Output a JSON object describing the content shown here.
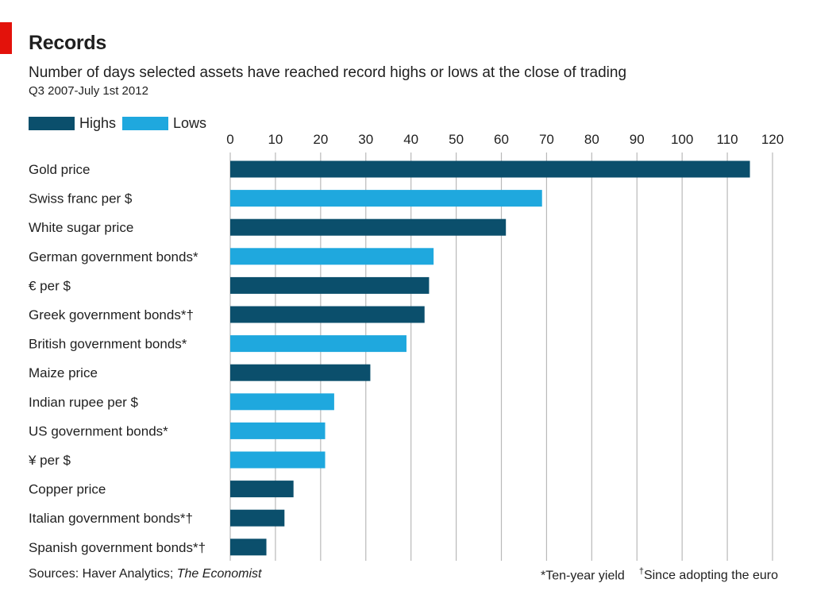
{
  "header": {
    "title": "Records",
    "subtitle": "Number of days selected assets have reached record highs or lows at the close of trading",
    "period": "Q3 2007-July 1st 2012"
  },
  "legend": {
    "highs_label": "Highs",
    "lows_label": "Lows"
  },
  "colors": {
    "highs": "#0b4f6c",
    "lows": "#1fa8de",
    "accent": "#e3120b",
    "gridline": "#b9b9b9"
  },
  "footer": {
    "sources_prefix": "Sources: Haver Analytics; ",
    "sources_italic": "The Economist",
    "note_one": "*Ten-year yield",
    "note_two_mark": "†",
    "note_two_text": "Since adopting the euro"
  },
  "chart_data": {
    "type": "bar",
    "orientation": "horizontal",
    "title": "Records",
    "subtitle": "Number of days selected assets have reached record highs or lows at the close of trading",
    "xlim": [
      0,
      120
    ],
    "ticks": [
      0,
      10,
      20,
      30,
      40,
      50,
      60,
      70,
      80,
      90,
      100,
      110,
      120
    ],
    "grid": true,
    "axis_position": "top",
    "legend_position": "top-left",
    "categories": [
      "Gold price",
      "Swiss franc per $",
      "White sugar price",
      "German government bonds*",
      "€ per $",
      "Greek government bonds*†",
      "British government bonds*",
      "Maize price",
      "Indian rupee per $",
      "US government bonds*",
      "¥ per $",
      "Copper price",
      "Italian government bonds*†",
      "Spanish government bonds*†"
    ],
    "values": [
      115,
      69,
      61,
      45,
      44,
      43,
      39,
      31,
      23,
      21,
      21,
      14,
      12,
      8
    ],
    "kinds": [
      "Highs",
      "Lows",
      "Highs",
      "Lows",
      "Highs",
      "Highs",
      "Lows",
      "Highs",
      "Lows",
      "Lows",
      "Lows",
      "Highs",
      "Highs",
      "Highs"
    ],
    "series": [
      {
        "name": "Highs",
        "values": [
          115,
          null,
          61,
          null,
          44,
          43,
          null,
          31,
          null,
          null,
          null,
          14,
          12,
          8
        ]
      },
      {
        "name": "Lows",
        "values": [
          null,
          69,
          null,
          45,
          null,
          null,
          39,
          null,
          23,
          21,
          21,
          null,
          null,
          null
        ]
      }
    ]
  }
}
